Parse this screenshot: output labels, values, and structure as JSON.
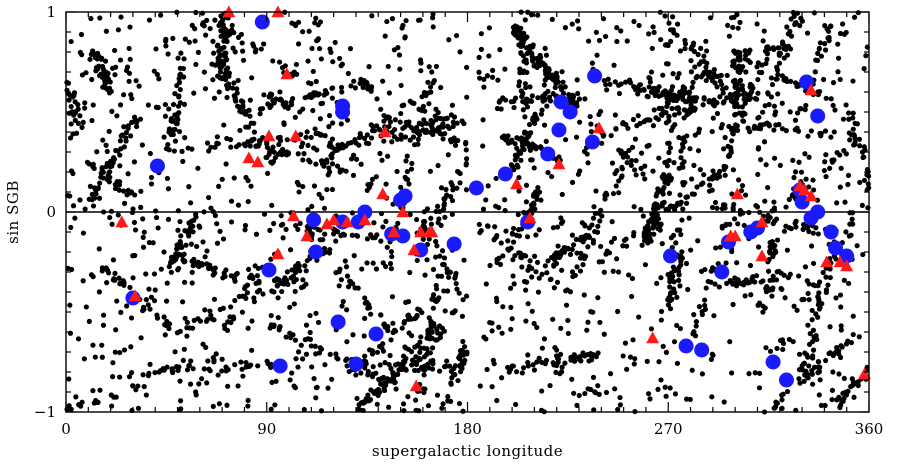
{
  "chart_data": {
    "type": "scatter",
    "title": "",
    "xlabel": "supergalactic longitude",
    "ylabel": "sin SGB",
    "xlim": [
      0,
      360
    ],
    "ylim": [
      -1,
      1
    ],
    "x_ticks": [
      0,
      90,
      180,
      270,
      360
    ],
    "x_tick_labels": [
      "0",
      "90",
      "180",
      "270",
      "360"
    ],
    "y_ticks": [
      -1,
      0,
      1
    ],
    "y_tick_labels": [
      "−1",
      "0",
      "1"
    ],
    "reference_line_y": 0,
    "grid": false,
    "legend": "none",
    "colors": {
      "background_points": "#000000",
      "blue_points": "#1a1aff",
      "red_points": "#ff1a1a"
    },
    "series": [
      {
        "marker": "small-filled-circle",
        "color": "#000000",
        "description": "dense background field of several thousand points; filaments",
        "clusters": [
          {
            "x": [
              0,
              180
            ],
            "y": [
              -1,
              1
            ],
            "n": 2000
          },
          {
            "x": [
              185,
              360
            ],
            "y": [
              -1,
              1
            ],
            "n": 2000
          }
        ]
      },
      {
        "marker": "large-filled-circle",
        "color": "#1a1aff",
        "x": [
          88,
          124,
          124,
          41,
          197,
          207,
          221,
          222,
          226,
          216,
          236,
          237,
          332,
          337,
          184,
          111,
          124,
          131,
          134,
          150,
          152,
          146,
          151,
          159,
          174,
          30,
          91,
          112,
          122,
          139,
          130,
          96,
          278,
          294,
          285,
          297,
          307,
          310,
          330,
          334,
          337,
          329,
          343,
          345,
          350,
          271,
          323,
          317
        ],
        "y": [
          0.95,
          0.5,
          0.53,
          0.23,
          0.19,
          -0.05,
          0.41,
          0.55,
          0.5,
          0.29,
          0.35,
          0.68,
          0.65,
          0.48,
          0.12,
          -0.04,
          -0.05,
          -0.05,
          0.0,
          0.06,
          0.08,
          -0.11,
          -0.12,
          -0.19,
          -0.16,
          -0.43,
          -0.29,
          -0.2,
          -0.55,
          -0.61,
          -0.76,
          -0.77,
          -0.67,
          -0.3,
          -0.69,
          -0.15,
          -0.1,
          -0.08,
          0.05,
          -0.03,
          0.0,
          0.11,
          -0.1,
          -0.18,
          -0.22,
          -0.22,
          -0.84,
          -0.75
        ]
      },
      {
        "marker": "filled-triangle",
        "color": "#ff1a1a",
        "x": [
          73,
          95,
          99,
          91,
          103,
          82,
          86,
          143,
          142,
          25,
          102,
          108,
          117,
          120,
          126,
          134,
          147,
          151,
          156,
          163,
          164,
          31,
          95,
          159,
          157,
          202,
          208,
          221,
          239,
          301,
          312,
          300,
          298,
          312,
          298,
          329,
          331,
          334,
          341,
          347,
          350,
          334,
          263,
          358
        ],
        "y": [
          1.0,
          1.0,
          0.69,
          0.38,
          0.38,
          0.27,
          0.25,
          0.4,
          0.09,
          -0.05,
          -0.02,
          -0.12,
          -0.06,
          -0.04,
          -0.05,
          -0.04,
          -0.1,
          0.0,
          -0.19,
          -0.1,
          -0.1,
          -0.42,
          -0.21,
          -0.1,
          -0.87,
          0.14,
          -0.03,
          0.24,
          0.42,
          0.09,
          -0.05,
          -0.12,
          -0.12,
          -0.22,
          -0.12,
          0.13,
          0.11,
          0.61,
          -0.25,
          -0.25,
          -0.27,
          0.08,
          -0.63,
          -0.81
        ]
      }
    ]
  }
}
